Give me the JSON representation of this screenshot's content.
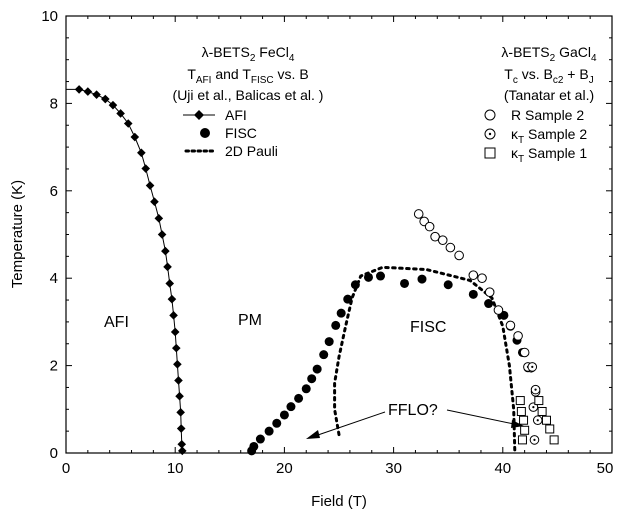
{
  "chart_data": {
    "type": "scatter",
    "xlabel": "Field (T)",
    "ylabel": "Temperature (K)",
    "xlim": [
      0,
      50
    ],
    "ylim": [
      0,
      10
    ],
    "xticks": [
      "0",
      "10",
      "20",
      "30",
      "40",
      "50"
    ],
    "yticks": [
      "0",
      "2",
      "4",
      "6",
      "8",
      "10"
    ],
    "grid": false,
    "series": [
      {
        "name": "AFI",
        "marker": "diamond-filled-line",
        "points": [
          [
            1.2,
            8.32
          ],
          [
            2.0,
            8.27
          ],
          [
            2.8,
            8.2
          ],
          [
            3.6,
            8.1
          ],
          [
            4.3,
            7.96
          ],
          [
            5.0,
            7.77
          ],
          [
            5.7,
            7.54
          ],
          [
            6.3,
            7.23
          ],
          [
            6.9,
            6.87
          ],
          [
            7.3,
            6.51
          ],
          [
            7.7,
            6.12
          ],
          [
            8.1,
            5.75
          ],
          [
            8.5,
            5.37
          ],
          [
            8.8,
            5.0
          ],
          [
            9.1,
            4.62
          ],
          [
            9.3,
            4.26
          ],
          [
            9.5,
            3.88
          ],
          [
            9.7,
            3.52
          ],
          [
            9.85,
            3.15
          ],
          [
            10.0,
            2.77
          ],
          [
            10.1,
            2.4
          ],
          [
            10.2,
            2.03
          ],
          [
            10.3,
            1.66
          ],
          [
            10.4,
            1.3
          ],
          [
            10.5,
            0.93
          ],
          [
            10.55,
            0.56
          ],
          [
            10.6,
            0.2
          ],
          [
            10.65,
            0.05
          ]
        ]
      },
      {
        "name": "FISC",
        "marker": "circle-filled",
        "points": [
          [
            17.0,
            0.05
          ],
          [
            17.2,
            0.15
          ],
          [
            17.8,
            0.32
          ],
          [
            18.6,
            0.5
          ],
          [
            19.3,
            0.68
          ],
          [
            20.0,
            0.87
          ],
          [
            20.6,
            1.06
          ],
          [
            21.3,
            1.25
          ],
          [
            22.0,
            1.47
          ],
          [
            22.5,
            1.7
          ],
          [
            23.0,
            1.92
          ],
          [
            23.6,
            2.25
          ],
          [
            24.1,
            2.55
          ],
          [
            24.7,
            2.92
          ],
          [
            25.2,
            3.2
          ],
          [
            25.8,
            3.52
          ],
          [
            26.5,
            3.85
          ],
          [
            27.7,
            4.02
          ],
          [
            28.8,
            4.05
          ],
          [
            31.0,
            3.88
          ],
          [
            32.6,
            3.98
          ],
          [
            35.0,
            3.85
          ],
          [
            37.3,
            3.63
          ],
          [
            38.7,
            3.42
          ],
          [
            40.1,
            3.15
          ],
          [
            40.7,
            2.9
          ],
          [
            41.3,
            2.58
          ],
          [
            41.8,
            2.3
          ],
          [
            42.3,
            1.95
          ]
        ]
      },
      {
        "name": "2D Pauli",
        "marker": "dotted-line",
        "points": [
          [
            25.0,
            0.42
          ],
          [
            24.6,
            1.0
          ],
          [
            24.6,
            1.6
          ],
          [
            25.0,
            2.2
          ],
          [
            25.6,
            2.9
          ],
          [
            26.2,
            3.55
          ],
          [
            27.0,
            4.05
          ],
          [
            29.0,
            4.25
          ],
          [
            33.0,
            4.2
          ],
          [
            37.0,
            3.95
          ],
          [
            39.0,
            3.55
          ],
          [
            40.0,
            2.9
          ],
          [
            40.6,
            2.0
          ],
          [
            41.0,
            1.0
          ],
          [
            41.1,
            0.05
          ]
        ]
      },
      {
        "name": "R  Sample 2",
        "marker": "circle-open",
        "points": [
          [
            32.3,
            5.47
          ],
          [
            32.8,
            5.3
          ],
          [
            33.3,
            5.18
          ],
          [
            33.8,
            4.95
          ],
          [
            34.5,
            4.87
          ],
          [
            35.2,
            4.7
          ],
          [
            36.0,
            4.52
          ],
          [
            37.3,
            4.07
          ],
          [
            38.1,
            4.0
          ],
          [
            38.8,
            3.68
          ],
          [
            39.6,
            3.27
          ],
          [
            40.7,
            2.92
          ],
          [
            41.4,
            2.68
          ],
          [
            42.0,
            2.3
          ],
          [
            42.6,
            1.95
          ],
          [
            43.0,
            1.4
          ]
        ]
      },
      {
        "name": "κT  Sample 2",
        "marker": "circle-dot",
        "points": [
          [
            42.3,
            1.97
          ],
          [
            42.7,
            1.97
          ],
          [
            43.0,
            1.45
          ],
          [
            42.8,
            1.05
          ],
          [
            43.2,
            0.75
          ],
          [
            42.9,
            0.3
          ]
        ]
      },
      {
        "name": "κT  Sample 1",
        "marker": "square-open",
        "points": [
          [
            41.6,
            1.2
          ],
          [
            43.3,
            1.2
          ],
          [
            41.7,
            0.95
          ],
          [
            43.6,
            0.95
          ],
          [
            41.9,
            0.75
          ],
          [
            44.0,
            0.75
          ],
          [
            42.0,
            0.52
          ],
          [
            44.3,
            0.55
          ],
          [
            41.8,
            0.3
          ],
          [
            44.7,
            0.3
          ]
        ]
      }
    ],
    "legend_left": {
      "title_lines": [
        "λ-BETS₂ FeCl₄",
        "T_AFI and T_FISC  vs.  B",
        "(Uji et al., Balicas et al. )"
      ],
      "entries": [
        "AFI",
        "FISC",
        "2D Pauli"
      ]
    },
    "legend_right": {
      "title_lines": [
        "λ-BETS₂ GaCl₄",
        "T_c  vs.  B_c2 + B_J",
        "(Tanatar et al.)"
      ],
      "entries": [
        "R  Sample 2",
        "κ_T  Sample 2",
        "κ_T  Sample 1"
      ]
    },
    "region_labels": [
      "AFI",
      "PM",
      "FISC"
    ],
    "annotation": "FFLO?"
  }
}
